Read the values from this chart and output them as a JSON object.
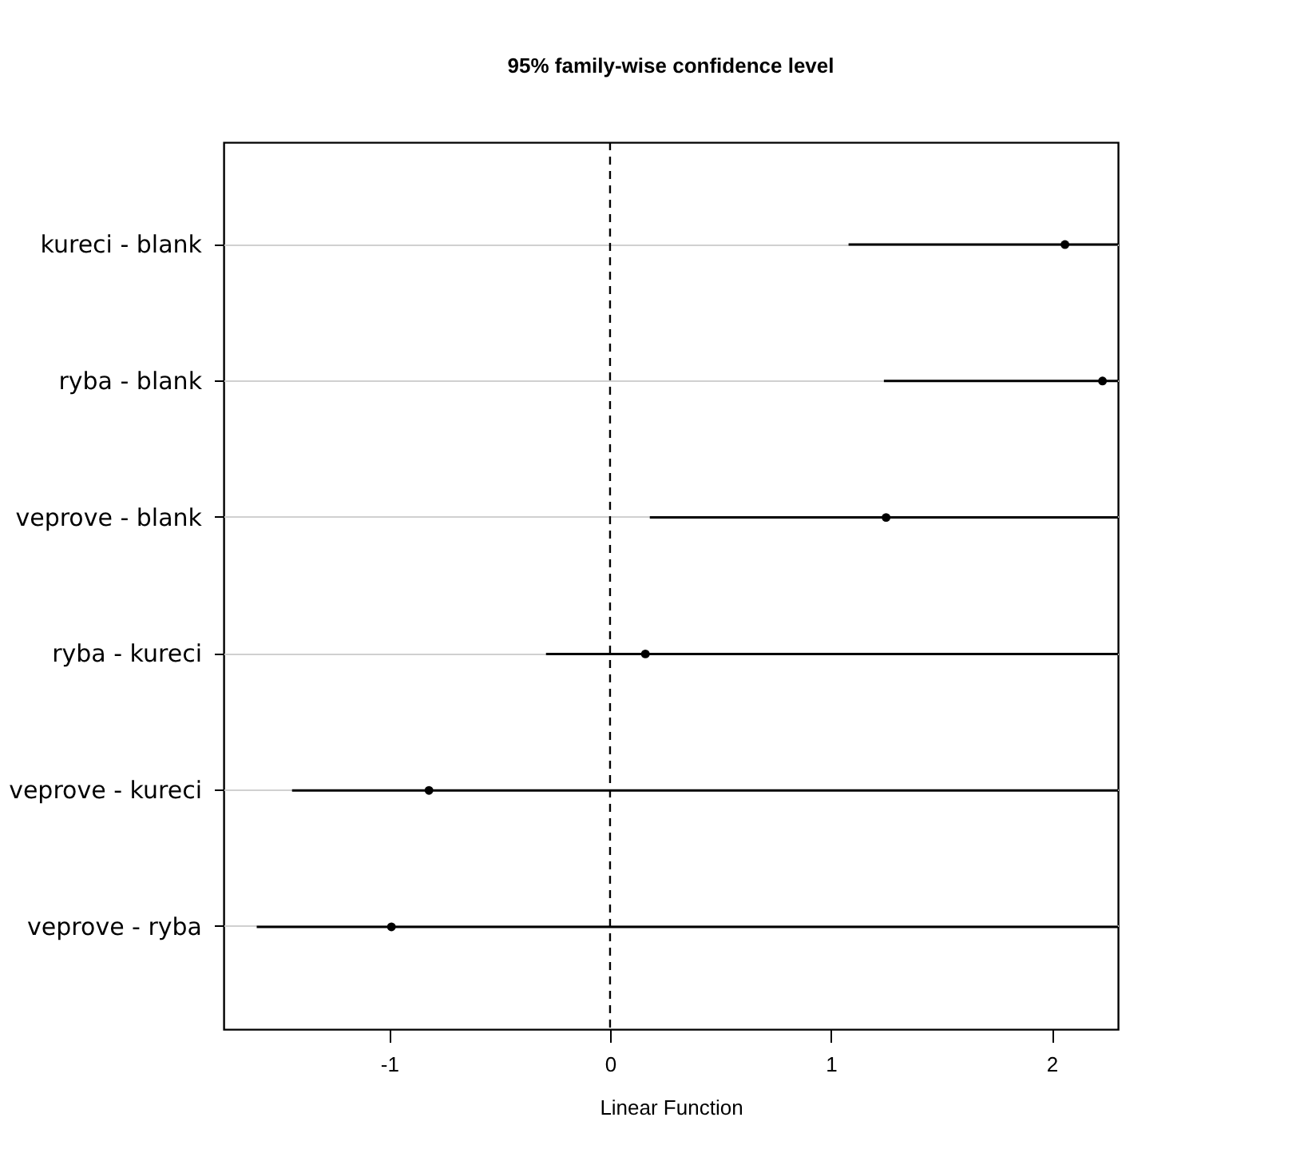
{
  "chart_data": {
    "type": "scatter",
    "title": "95% family-wise confidence level",
    "xlabel": "Linear Function",
    "orientation": "horizontal",
    "categories": [
      "kureci - blank",
      "ryba - blank",
      "veprove - blank",
      "ryba - kureci",
      "veprove - kureci",
      "veprove - ryba"
    ],
    "values": [
      2.06,
      2.23,
      1.25,
      0.16,
      -0.82,
      -0.99
    ],
    "errors": [
      [
        1.08,
        2.3
      ],
      [
        1.24,
        2.3
      ],
      [
        0.18,
        2.3
      ],
      [
        -0.29,
        2.3
      ],
      [
        -1.44,
        2.3
      ],
      [
        -1.6,
        2.3
      ]
    ],
    "color": "#000000",
    "marker": "circle",
    "xlim": [
      -1.75,
      2.3
    ],
    "xticks": [
      -1,
      0,
      1,
      2
    ],
    "ref_lines": [
      {
        "axis": "x",
        "value": 0,
        "line_style": "dashed",
        "color": "#000000"
      }
    ],
    "grid": "y"
  }
}
